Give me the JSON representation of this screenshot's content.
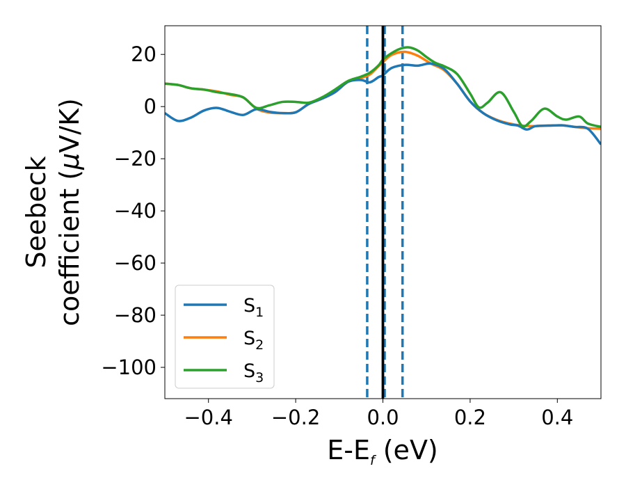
{
  "chart_data": {
    "type": "line",
    "xlabel": "E-E",
    "xlabel_sub": "f",
    "xlabel_unit": " (eV)",
    "ylabel_line1": "Seebeck",
    "ylabel_line2": "coefficient  (",
    "ylabel_mu": "μ",
    "ylabel_unit": "V/K)",
    "xlim": [
      -0.5,
      0.5
    ],
    "ylim": [
      -112,
      31
    ],
    "x_ticks": [
      -0.4,
      -0.2,
      0.0,
      0.2,
      0.4
    ],
    "x_tick_labels": [
      "−0.4",
      "−0.2",
      "0.0",
      "0.2",
      "0.4"
    ],
    "y_ticks": [
      20,
      0,
      -20,
      -40,
      -60,
      -80,
      -100
    ],
    "y_tick_labels": [
      "20",
      "0",
      "−20",
      "−40",
      "−60",
      "−80",
      "−100"
    ],
    "grid": false,
    "legend_position": "lower-left",
    "colors": {
      "S1": "#1f77b4",
      "S2": "#ff7f0e",
      "S3": "#2ca02c",
      "fermi_line": "#000000",
      "dashed_lines": "#1f77b4"
    },
    "vertical_lines": [
      {
        "x": 0.0,
        "style": "solid",
        "color": "#000000"
      },
      {
        "x": -0.036,
        "style": "dashed",
        "color": "#1f77b4"
      },
      {
        "x": 0.004,
        "style": "dashed",
        "color": "#1f77b4"
      },
      {
        "x": 0.045,
        "style": "dashed",
        "color": "#1f77b4"
      }
    ],
    "series": [
      {
        "name": "S",
        "sub": "1",
        "color": "#1f77b4",
        "x": [
          -0.5,
          -0.47,
          -0.44,
          -0.41,
          -0.38,
          -0.35,
          -0.32,
          -0.29,
          -0.26,
          -0.23,
          -0.2,
          -0.17,
          -0.14,
          -0.11,
          -0.08,
          -0.05,
          -0.03,
          -0.01,
          0.0,
          0.02,
          0.05,
          0.08,
          0.11,
          0.14,
          0.17,
          0.2,
          0.23,
          0.26,
          0.29,
          0.31,
          0.33,
          0.35,
          0.38,
          0.41,
          0.44,
          0.47,
          0.5
        ],
        "y": [
          -2.5,
          -5.5,
          -4.2,
          -1.5,
          -0.5,
          -2.0,
          -3.2,
          -1.0,
          -2.0,
          -2.5,
          -2.2,
          1.0,
          3.0,
          5.5,
          9.5,
          10.2,
          9.3,
          11.3,
          12.0,
          14.8,
          16.0,
          15.7,
          16.5,
          14.5,
          8.8,
          2.0,
          -2.5,
          -5.2,
          -6.8,
          -7.3,
          -8.8,
          -7.5,
          -7.3,
          -7.2,
          -7.8,
          -8.5,
          -14.5
        ]
      },
      {
        "name": "S",
        "sub": "2",
        "color": "#ff7f0e",
        "x": [
          -0.5,
          -0.47,
          -0.44,
          -0.41,
          -0.38,
          -0.35,
          -0.32,
          -0.29,
          -0.26,
          -0.23,
          -0.2,
          -0.17,
          -0.14,
          -0.11,
          -0.08,
          -0.05,
          -0.03,
          -0.01,
          0.0,
          0.02,
          0.05,
          0.08,
          0.11,
          0.14,
          0.17,
          0.2,
          0.23,
          0.26,
          0.29,
          0.32,
          0.35,
          0.38,
          0.41,
          0.44,
          0.47,
          0.5
        ],
        "y": [
          8.8,
          8.3,
          7.0,
          6.5,
          5.8,
          4.5,
          3.5,
          -0.8,
          -2.3,
          -2.5,
          -2.2,
          1.0,
          3.0,
          5.5,
          9.5,
          11.0,
          12.3,
          15.5,
          17.0,
          19.8,
          21.0,
          19.5,
          16.5,
          14.0,
          8.8,
          2.0,
          -2.5,
          -5.0,
          -6.5,
          -7.3,
          -7.5,
          -7.3,
          -7.2,
          -7.8,
          -8.3,
          -8.5
        ]
      },
      {
        "name": "S",
        "sub": "3",
        "color": "#2ca02c",
        "x": [
          -0.5,
          -0.47,
          -0.44,
          -0.41,
          -0.38,
          -0.35,
          -0.32,
          -0.29,
          -0.26,
          -0.23,
          -0.2,
          -0.17,
          -0.14,
          -0.11,
          -0.08,
          -0.05,
          -0.03,
          -0.01,
          0.0,
          0.02,
          0.04,
          0.06,
          0.08,
          0.1,
          0.12,
          0.14,
          0.17,
          0.2,
          0.22,
          0.24,
          0.27,
          0.3,
          0.32,
          0.34,
          0.37,
          0.4,
          0.42,
          0.45,
          0.47,
          0.5
        ],
        "y": [
          8.8,
          8.3,
          7.0,
          6.5,
          5.5,
          4.8,
          3.5,
          -0.5,
          0.5,
          1.8,
          1.8,
          1.5,
          3.5,
          6.5,
          9.8,
          11.5,
          13.0,
          15.8,
          18.0,
          20.5,
          22.2,
          22.7,
          21.5,
          19.0,
          16.8,
          15.5,
          12.5,
          5.0,
          -0.3,
          1.5,
          5.5,
          -2.0,
          -7.5,
          -5.5,
          -0.8,
          -3.8,
          -5.0,
          -3.8,
          -6.5,
          -7.8
        ]
      }
    ]
  }
}
